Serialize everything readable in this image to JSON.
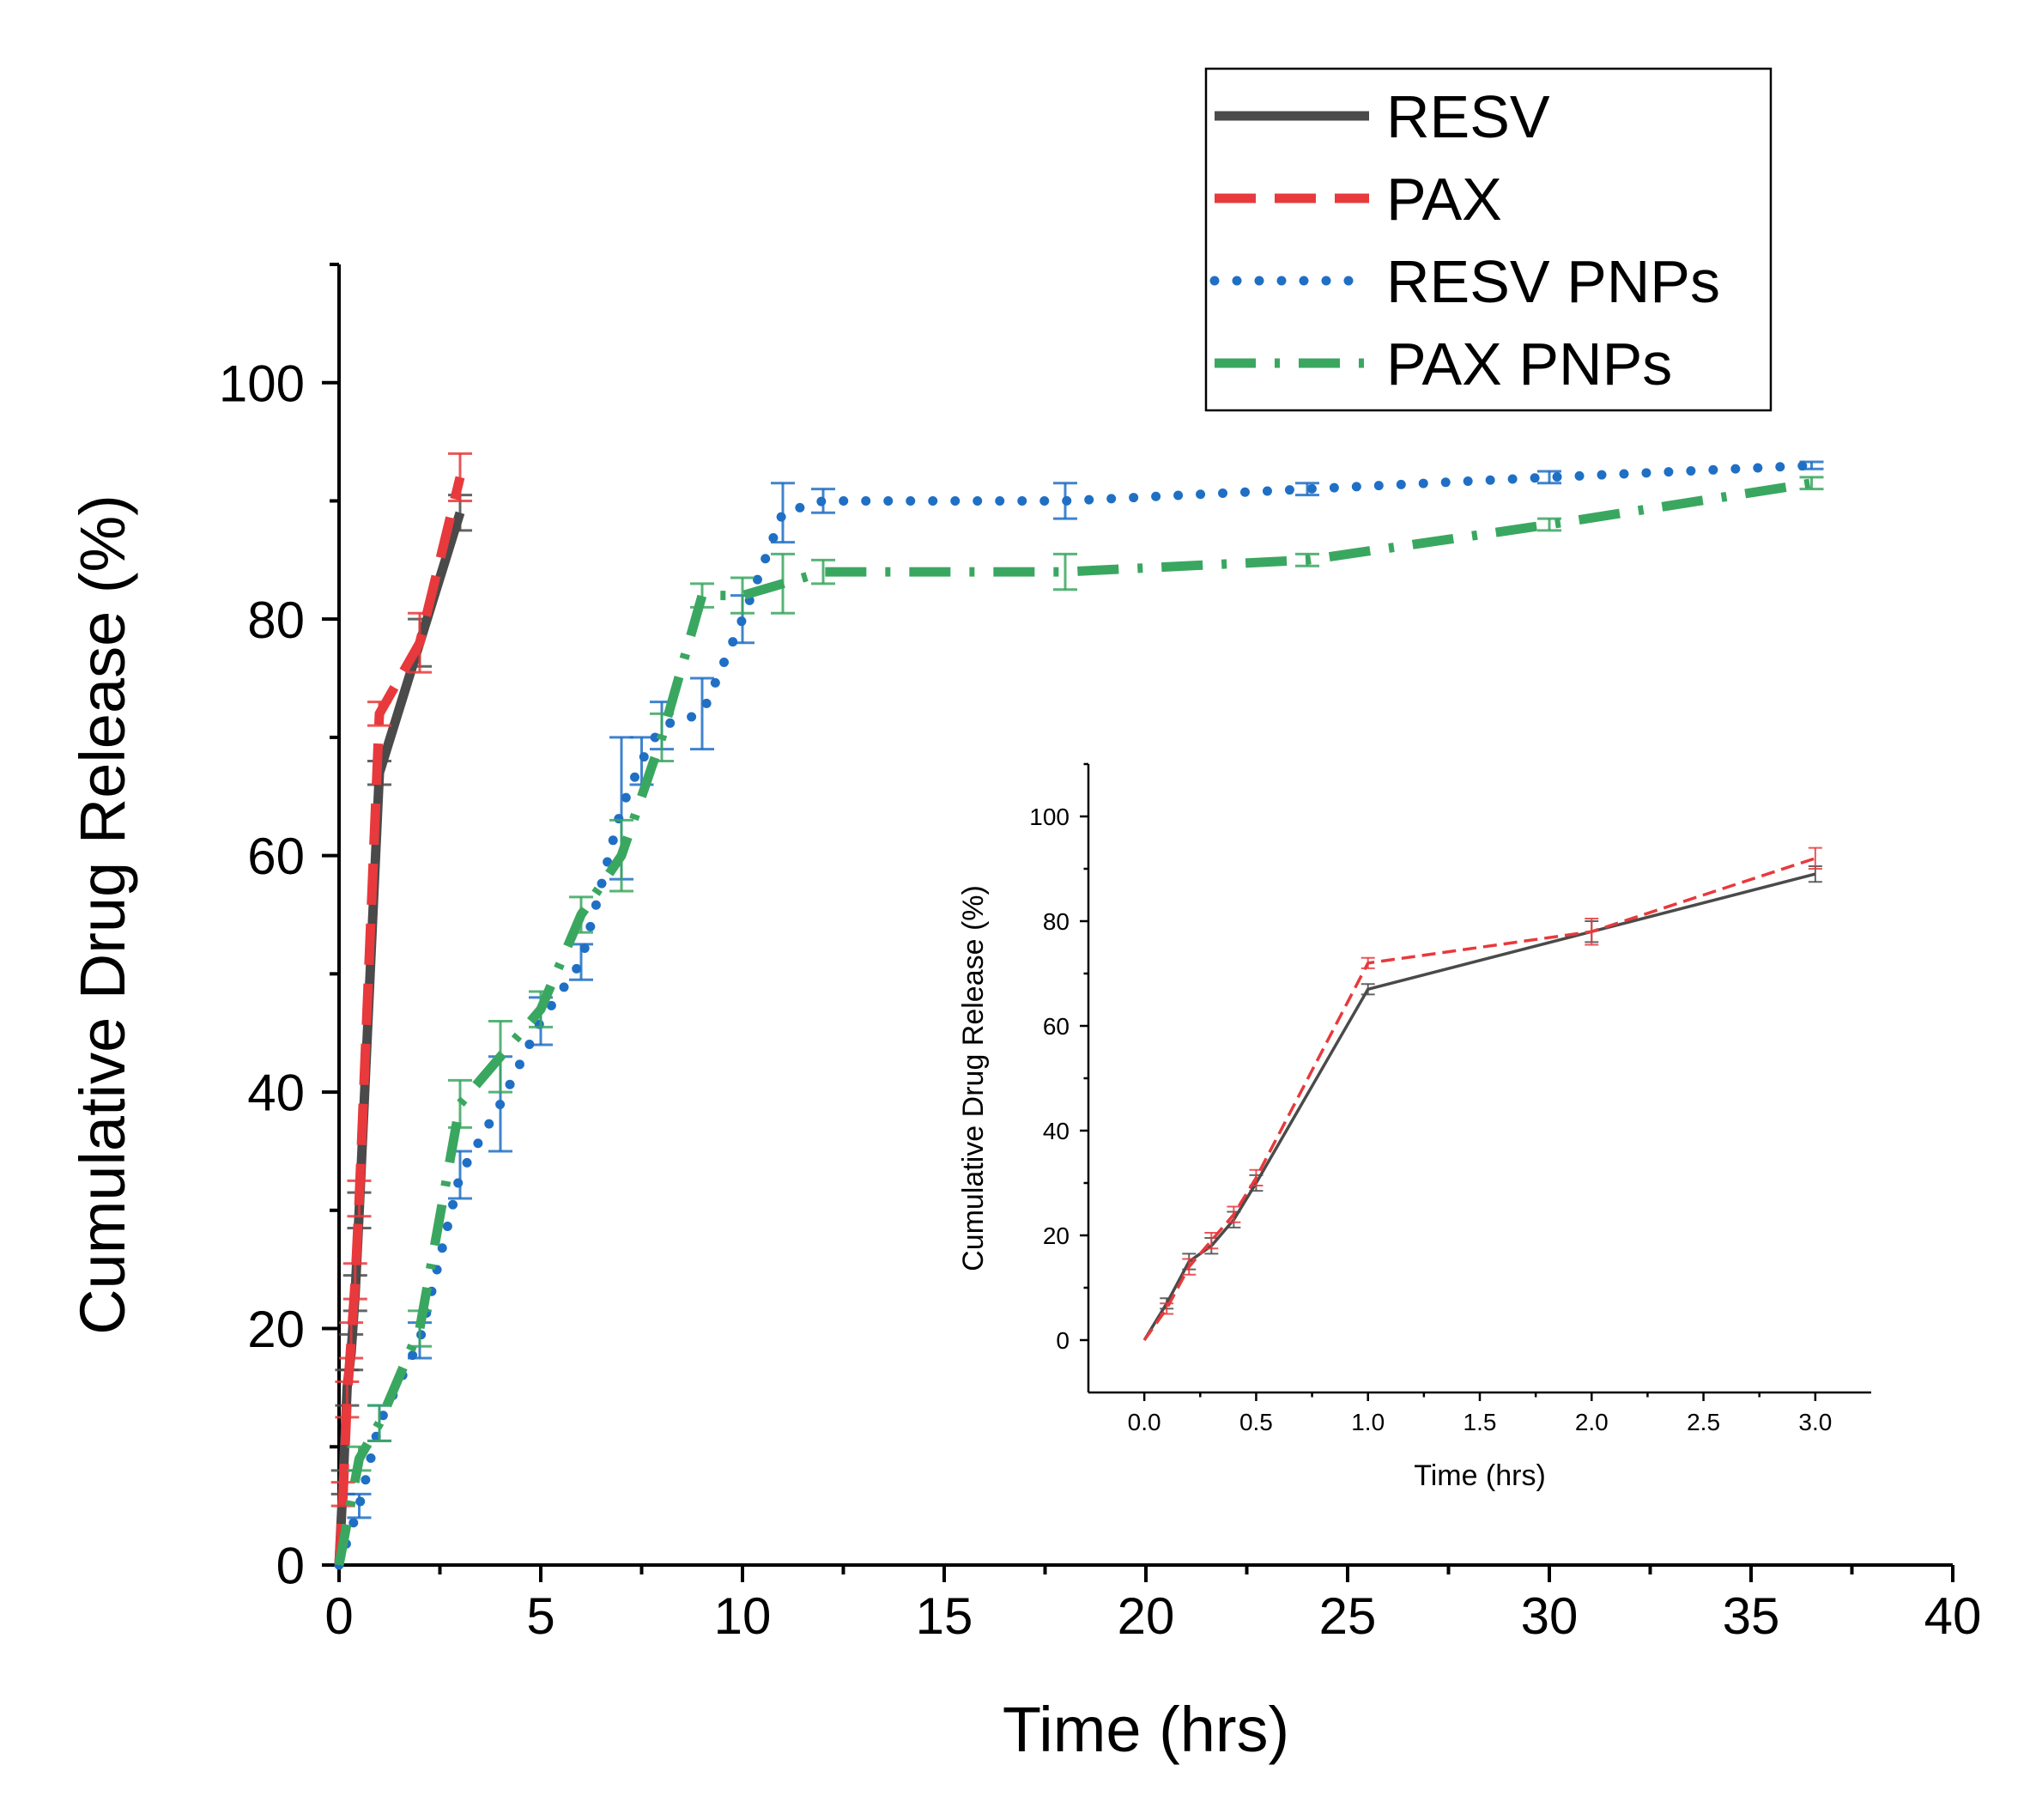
{
  "chart_data": [
    {
      "type": "line",
      "title": "",
      "xlabel": "Time (hrs)",
      "ylabel": "Cumulative Drug Release (%)",
      "xlim": [
        0,
        40
      ],
      "ylim": [
        0,
        110
      ],
      "xticks": [
        0,
        5,
        10,
        15,
        20,
        25,
        30,
        35,
        40
      ],
      "xtick_labels": [
        "0",
        "5",
        "10",
        "15",
        "20",
        "25",
        "30",
        "35",
        "40"
      ],
      "yticks": [
        0,
        20,
        40,
        60,
        80,
        100
      ],
      "ytick_labels": [
        "0",
        "20",
        "40",
        "60",
        "80",
        "100"
      ],
      "grid": false,
      "legend_position": "top-right",
      "series": [
        {
          "name": "RESV",
          "color": "#4a4a4a",
          "dash": "solid",
          "x": [
            0,
            0.1,
            0.2,
            0.3,
            0.4,
            0.5,
            1,
            2,
            3
          ],
          "y": [
            0,
            7,
            15,
            18,
            23,
            30,
            67,
            78,
            89
          ],
          "err": [
            0,
            1,
            1.5,
            1.5,
            1.5,
            1.5,
            1,
            2,
            1.5
          ]
        },
        {
          "name": "PAX",
          "color": "#e8393c",
          "dash": "dashed",
          "x": [
            0,
            0.1,
            0.2,
            0.3,
            0.4,
            0.5,
            1,
            2,
            3
          ],
          "y": [
            0,
            6,
            14,
            19,
            24,
            31,
            72,
            78,
            92
          ],
          "err": [
            0,
            1,
            1.5,
            1.5,
            1.5,
            1.5,
            1,
            2.5,
            2
          ]
        },
        {
          "name": "RESV PNPs",
          "color": "#1f6fc5",
          "dash": "dotted",
          "x": [
            0,
            0.5,
            1,
            2,
            3,
            4,
            5,
            6,
            7,
            7.5,
            8,
            9,
            10,
            11,
            12,
            18,
            24,
            30,
            36.5
          ],
          "y": [
            0,
            5,
            12,
            19,
            33,
            39,
            46,
            51,
            64,
            68,
            71,
            72,
            80,
            89,
            90,
            90,
            91,
            92,
            93
          ],
          "err": [
            0,
            1,
            1.5,
            1.5,
            2,
            4,
            2,
            1.5,
            6,
            2,
            2,
            3,
            2,
            2.5,
            1,
            1.5,
            0.5,
            0.5,
            0.3
          ]
        },
        {
          "name": "PAX PNPs",
          "color": "#3aa760",
          "dash": "dash-dot",
          "x": [
            0,
            0.5,
            1,
            2,
            3,
            4,
            5,
            6,
            7,
            8,
            9,
            10,
            11,
            12,
            18,
            24,
            30,
            36.5
          ],
          "y": [
            0,
            9,
            12,
            20,
            39,
            43,
            47,
            55,
            60,
            70,
            82,
            82,
            83,
            84,
            84,
            85,
            88,
            91.5
          ],
          "err": [
            0,
            1,
            1.5,
            1.5,
            2,
            3,
            1.5,
            1.5,
            3,
            2,
            1,
            1.5,
            2.5,
            1,
            1.5,
            0.5,
            0.5,
            0.5
          ]
        }
      ]
    },
    {
      "type": "line",
      "title": "",
      "xlabel": "Time (hrs)",
      "ylabel": "Cumulative Drug Release (%)",
      "xlim": [
        -0.25,
        3.25
      ],
      "ylim": [
        -10,
        110
      ],
      "xticks": [
        0,
        0.5,
        1,
        1.5,
        2,
        2.5,
        3
      ],
      "xtick_labels": [
        "0.0",
        "0.5",
        "1.0",
        "1.5",
        "2.0",
        "2.5",
        "3.0"
      ],
      "yticks": [
        0,
        20,
        40,
        60,
        80,
        100
      ],
      "ytick_labels": [
        "0",
        "20",
        "40",
        "60",
        "80",
        "100"
      ],
      "grid": false,
      "legend_position": "none",
      "series": [
        {
          "name": "RESV",
          "color": "#4a4a4a",
          "dash": "solid",
          "x": [
            0,
            0.1,
            0.2,
            0.3,
            0.4,
            0.5,
            1,
            2,
            3
          ],
          "y": [
            0,
            7,
            15,
            18,
            23,
            30,
            67,
            78,
            89
          ],
          "err": [
            0,
            1,
            1.5,
            1.5,
            1.5,
            1.5,
            1,
            2,
            1.5
          ]
        },
        {
          "name": "PAX",
          "color": "#e8393c",
          "dash": "dashed",
          "x": [
            0,
            0.1,
            0.2,
            0.3,
            0.4,
            0.5,
            1,
            2,
            3
          ],
          "y": [
            0,
            6,
            14,
            19,
            24,
            31,
            72,
            78,
            92
          ],
          "err": [
            0,
            1,
            1.5,
            1.5,
            1.5,
            1.5,
            1,
            2.5,
            2
          ]
        }
      ]
    }
  ]
}
